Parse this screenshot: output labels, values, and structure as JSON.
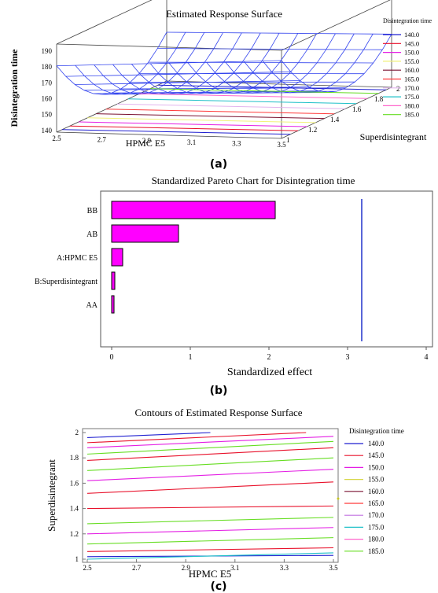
{
  "figure_a": {
    "caption": "(a)",
    "chart_data": {
      "type": "surface3d",
      "title": "Estimated Response Surface",
      "xlabel": "HPMC E5",
      "ylabel": "Superdisintegrant",
      "zlabel": "Disintegration time",
      "x_ticks": [
        "2.5",
        "2.7",
        "2.9",
        "3.1",
        "3.3",
        "3.5"
      ],
      "y_ticks": [
        "1",
        "1.2",
        "1.4",
        "1.6",
        "1.8",
        "2"
      ],
      "z_ticks": [
        "140",
        "150",
        "160",
        "170",
        "180",
        "190"
      ],
      "legend_title": "Disintegration time",
      "legend": [
        {
          "label": "140.0",
          "color": "#1f1fd0"
        },
        {
          "label": "145.0",
          "color": "#e8102a"
        },
        {
          "label": "150.0",
          "color": "#e41ee4"
        },
        {
          "label": "155.0",
          "color": "#f2f27a"
        },
        {
          "label": "160.0",
          "color": "#7a1230"
        },
        {
          "label": "165.0",
          "color": "#ff3a3a"
        },
        {
          "label": "170.0",
          "color": "#e2b4ee"
        },
        {
          "label": "175.0",
          "color": "#1ec0c8"
        },
        {
          "label": "180.0",
          "color": "#ff66cc"
        },
        {
          "label": "185.0",
          "color": "#66dd22"
        }
      ]
    }
  },
  "figure_b": {
    "caption": "(b)",
    "chart_data": {
      "type": "bar",
      "orientation": "horizontal",
      "title": "Standardized Pareto Chart for Disintegration time",
      "xlabel": "Standardized effect",
      "categories": [
        "BB",
        "AB",
        "A:HPMC E5",
        "B:Superdisintegrant",
        "AA"
      ],
      "values": [
        2.08,
        0.85,
        0.14,
        0.04,
        0.03
      ],
      "xlim": [
        0,
        4
      ],
      "x_ticks": [
        "0",
        "1",
        "2",
        "3",
        "4"
      ],
      "reference_line": 3.18,
      "bar_color": "#ff00ff",
      "line_color": "#2233cc"
    }
  },
  "figure_c": {
    "caption": "(c)",
    "chart_data": {
      "type": "contour",
      "title": "Contours of Estimated Response Surface",
      "xlabel": "HPMC E5",
      "ylabel": "Superdisintegrant",
      "xlim": [
        2.5,
        3.5
      ],
      "ylim": [
        1,
        2
      ],
      "x_ticks": [
        "2.5",
        "2.7",
        "2.9",
        "3.1",
        "3.3",
        "3.5"
      ],
      "y_ticks": [
        "1",
        "1.2",
        "1.4",
        "1.6",
        "1.8",
        "2"
      ],
      "legend_title": "Disintegration time",
      "legend": [
        {
          "label": "140.0",
          "color": "#1f1fd0"
        },
        {
          "label": "145.0",
          "color": "#e8102a"
        },
        {
          "label": "150.0",
          "color": "#e41ee4"
        },
        {
          "label": "155.0",
          "color": "#d8d84a"
        },
        {
          "label": "160.0",
          "color": "#7a1230"
        },
        {
          "label": "165.0",
          "color": "#ff3a3a"
        },
        {
          "label": "170.0",
          "color": "#c070e0"
        },
        {
          "label": "175.0",
          "color": "#1ec0c8"
        },
        {
          "label": "180.0",
          "color": "#ff66cc"
        },
        {
          "label": "185.0",
          "color": "#66dd22"
        }
      ],
      "contours": [
        {
          "color": "#1f1fd0",
          "y": [
            1.02,
            1.03
          ]
        },
        {
          "color": "#e8102a",
          "y": [
            1.06,
            1.09
          ]
        },
        {
          "color": "#1ec0c8",
          "y": [
            1.0,
            1.05
          ]
        },
        {
          "color": "#66dd22",
          "y": [
            1.12,
            1.17
          ]
        },
        {
          "color": "#e41ee4",
          "y": [
            1.2,
            1.25
          ]
        },
        {
          "color": "#66dd22",
          "y": [
            1.28,
            1.33
          ]
        },
        {
          "color": "#e8102a",
          "y": [
            1.4,
            1.42
          ]
        },
        {
          "color": "#e8102a",
          "y": [
            1.52,
            1.61
          ]
        },
        {
          "color": "#e41ee4",
          "y": [
            1.62,
            1.71
          ]
        },
        {
          "color": "#66dd22",
          "y": [
            1.7,
            1.8
          ]
        },
        {
          "color": "#e8102a",
          "y": [
            1.78,
            1.88
          ]
        },
        {
          "color": "#66dd22",
          "y": [
            1.83,
            1.93
          ]
        },
        {
          "color": "#e41ee4",
          "y": [
            1.88,
            1.97
          ]
        },
        {
          "color": "#e8102a",
          "y": [
            1.92,
            2.01
          ]
        },
        {
          "color": "#1f1fd0",
          "y": [
            1.96,
            2.04
          ]
        }
      ]
    }
  }
}
